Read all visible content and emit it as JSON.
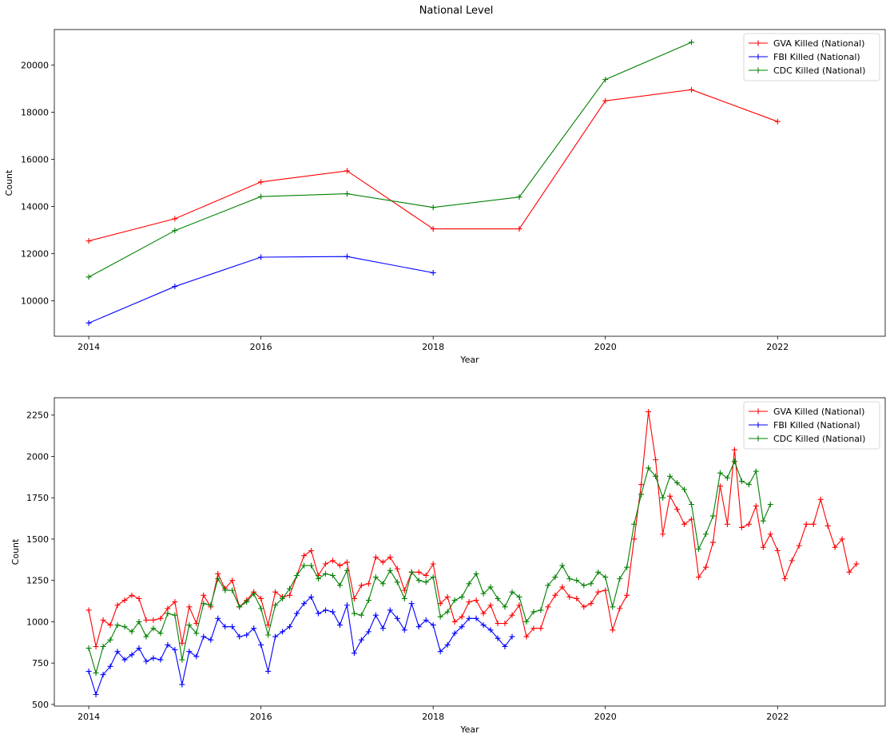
{
  "title": "National Level",
  "colors": {
    "gva": "#ff0000",
    "fbi": "#0000ff",
    "cdc": "#008000"
  },
  "chart_data": [
    {
      "type": "line",
      "xlabel": "Year",
      "ylabel": "Count",
      "xlim": [
        2013.6,
        2023.25
      ],
      "ylim": [
        8500,
        21500
      ],
      "xticks": [
        "2014",
        "2016",
        "2018",
        "2020",
        "2022"
      ],
      "yticks": [
        "10000",
        "12000",
        "14000",
        "16000",
        "18000",
        "20000"
      ],
      "legend_position": "top-right",
      "grid": false,
      "series": [
        {
          "name": "GVA Killed (National)",
          "color": "#ff0000",
          "x": [
            2014,
            2015,
            2016,
            2017,
            2018,
            2019,
            2020,
            2021,
            2022
          ],
          "y": [
            12540,
            13480,
            15040,
            15510,
            13050,
            13050,
            18480,
            18950,
            17600
          ]
        },
        {
          "name": "FBI Killed (National)",
          "color": "#0000ff",
          "x": [
            2014,
            2015,
            2016,
            2017,
            2018
          ],
          "y": [
            9060,
            10610,
            11850,
            11880,
            11190
          ]
        },
        {
          "name": "CDC Killed (National)",
          "color": "#008000",
          "x": [
            2014,
            2015,
            2016,
            2017,
            2018,
            2019,
            2020,
            2021
          ],
          "y": [
            11010,
            12980,
            14420,
            14540,
            13960,
            14400,
            19380,
            20960
          ]
        }
      ]
    },
    {
      "type": "line",
      "xlabel": "Year",
      "ylabel": "Count",
      "xlim": [
        2013.6,
        2023.25
      ],
      "ylim": [
        490,
        2355
      ],
      "xticks": [
        "2014",
        "2016",
        "2018",
        "2020",
        "2022"
      ],
      "yticks": [
        "500",
        "750",
        "1000",
        "1250",
        "1500",
        "1750",
        "2000",
        "2250"
      ],
      "legend_position": "top-right",
      "grid": false,
      "x_start": "2014-01",
      "x_step": "1 month",
      "series": [
        {
          "name": "GVA Killed (National)",
          "color": "#ff0000",
          "values": [
            1070,
            850,
            1010,
            980,
            1100,
            1130,
            1160,
            1140,
            1010,
            1010,
            1020,
            1080,
            1120,
            870,
            1090,
            990,
            1160,
            1090,
            1290,
            1200,
            1250,
            1090,
            1130,
            1180,
            1140,
            980,
            1180,
            1150,
            1160,
            1280,
            1400,
            1430,
            1280,
            1350,
            1370,
            1340,
            1360,
            1140,
            1220,
            1230,
            1390,
            1360,
            1390,
            1320,
            1190,
            1300,
            1300,
            1280,
            1350,
            1110,
            1150,
            1000,
            1030,
            1120,
            1130,
            1050,
            1100,
            990,
            990,
            1040,
            1100,
            910,
            960,
            960,
            1090,
            1160,
            1210,
            1150,
            1140,
            1090,
            1110,
            1180,
            1190,
            950,
            1080,
            1160,
            1500,
            1830,
            2270,
            1980,
            1530,
            1760,
            1680,
            1590,
            1620,
            1270,
            1330,
            1480,
            1820,
            1590,
            2040,
            1570,
            1590,
            1700,
            1450,
            1530,
            1430,
            1260,
            1370,
            1460,
            1590,
            1590,
            1740,
            1580,
            1450,
            1500,
            1300,
            1350
          ]
        },
        {
          "name": "FBI Killed (National)",
          "color": "#0000ff",
          "values": [
            700,
            560,
            680,
            730,
            820,
            770,
            800,
            840,
            760,
            780,
            770,
            860,
            830,
            620,
            820,
            790,
            910,
            890,
            1020,
            970,
            970,
            910,
            920,
            960,
            860,
            700,
            910,
            940,
            970,
            1050,
            1110,
            1150,
            1050,
            1070,
            1060,
            980,
            1100,
            810,
            890,
            940,
            1040,
            960,
            1070,
            1020,
            950,
            1110,
            970,
            1010,
            980,
            820,
            860,
            930,
            970,
            1020,
            1020,
            980,
            950,
            900,
            850,
            910
          ]
        },
        {
          "name": "CDC Killed (National)",
          "color": "#008000",
          "values": [
            840,
            690,
            850,
            890,
            980,
            970,
            940,
            1000,
            910,
            960,
            930,
            1050,
            1040,
            770,
            980,
            930,
            1110,
            1100,
            1260,
            1190,
            1190,
            1090,
            1120,
            1170,
            1080,
            920,
            1100,
            1140,
            1200,
            1280,
            1340,
            1340,
            1260,
            1290,
            1280,
            1220,
            1310,
            1050,
            1040,
            1130,
            1270,
            1230,
            1310,
            1240,
            1140,
            1300,
            1250,
            1240,
            1270,
            1030,
            1060,
            1130,
            1150,
            1230,
            1290,
            1170,
            1210,
            1140,
            1090,
            1180,
            1150,
            1000,
            1060,
            1070,
            1220,
            1270,
            1340,
            1260,
            1250,
            1220,
            1230,
            1300,
            1270,
            1090,
            1260,
            1330,
            1590,
            1770,
            1930,
            1880,
            1750,
            1880,
            1840,
            1800,
            1710,
            1440,
            1530,
            1640,
            1900,
            1870,
            1970,
            1850,
            1830,
            1910,
            1610,
            1710
          ]
        }
      ]
    }
  ]
}
